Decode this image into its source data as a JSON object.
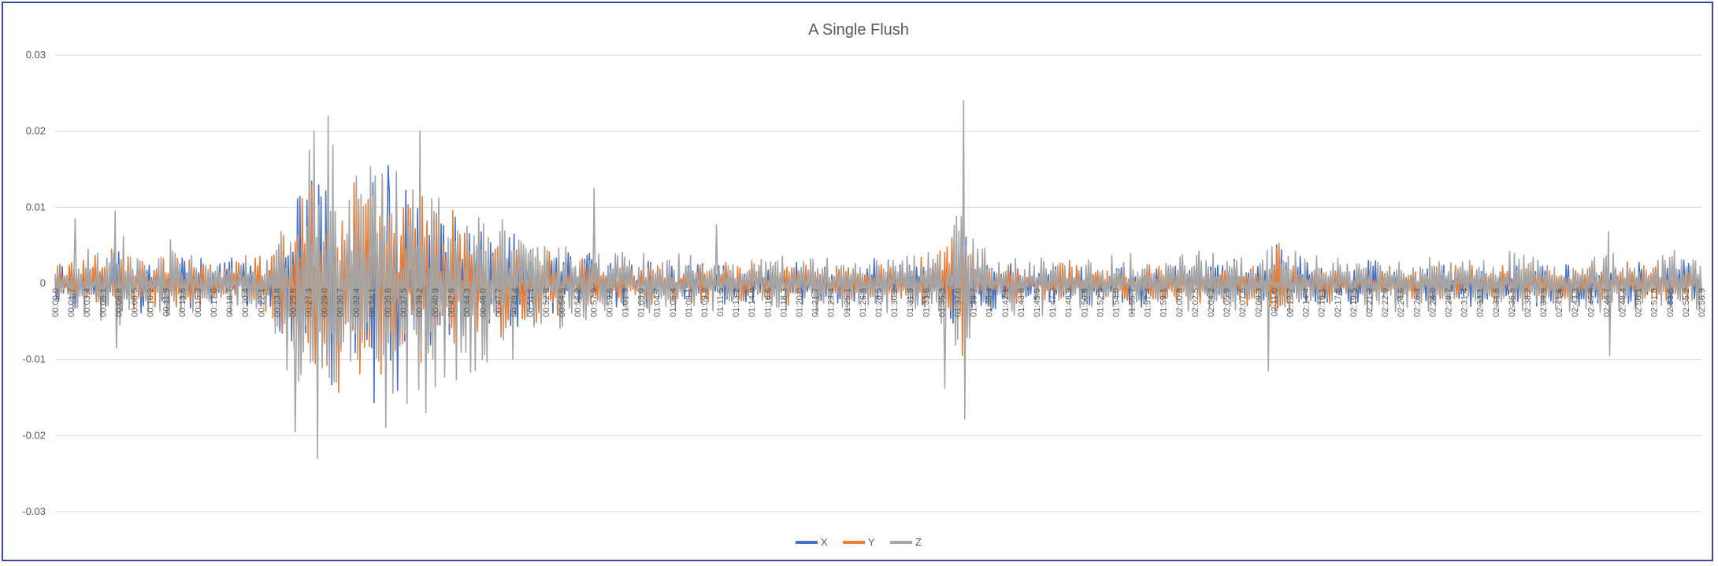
{
  "chart_data": {
    "type": "line",
    "title": "A Single Flush",
    "xlabel": "",
    "ylabel": "",
    "ylim": [
      -0.03,
      0.03
    ],
    "yticks": [
      "0.03",
      "0.02",
      "0.01",
      "0",
      "-0.01",
      "-0.02",
      "-0.03"
    ],
    "grid": true,
    "legend_position": "bottom",
    "xtick_labels": [
      "00:00.0",
      "00:01.7",
      "00:03.4",
      "00:05.1",
      "00:06.8",
      "00:08.5",
      "00:10.2",
      "00:11.9",
      "00:13.6",
      "00:15.3",
      "00:17.0",
      "00:18.7",
      "00:20.4",
      "00:22.1",
      "00:23.8",
      "00:25.6",
      "00:27.3",
      "00:29.0",
      "00:30.7",
      "00:32.4",
      "00:34.1",
      "00:35.8",
      "00:37.5",
      "00:39.2",
      "00:40.9",
      "00:42.6",
      "00:44.3",
      "00:46.0",
      "00:47.7",
      "00:49.4",
      "00:51.1",
      "00:52.8",
      "00:54.5",
      "00:56.2",
      "00:57.9",
      "00:59.6",
      "01:01.3",
      "01:03.0",
      "01:04.7",
      "01:06.4",
      "01:08.1",
      "01:09.8",
      "01:11.5",
      "01:13.2",
      "01:14.9",
      "01:16.6",
      "01:18.3",
      "01:20.0",
      "01:21.7",
      "01:23.4",
      "01:25.1",
      "01:26.8",
      "01:28.5",
      "01:30.2",
      "01:31.9",
      "01:33.6",
      "01:35.3",
      "01:37.0",
      "01:38.7",
      "01:40.4",
      "01:42.1",
      "01:43.8",
      "01:45.5",
      "01:47.2",
      "01:48.9",
      "01:50.6",
      "01:52.3",
      "01:54.0",
      "01:55.7",
      "01:57.4",
      "01:59.1",
      "02:00.8",
      "02:02.5",
      "02:04.2",
      "02:05.9",
      "02:07.6",
      "02:09.3",
      "02:11.0",
      "02:12.7",
      "02:14.4",
      "02:16.1",
      "02:17.8",
      "02:19.5",
      "02:21.2",
      "02:22.9",
      "02:24.6",
      "02:26.3",
      "02:28.0",
      "02:29.7",
      "02:31.4",
      "02:33.1",
      "02:34.8",
      "02:36.5",
      "02:38.2",
      "02:39.9",
      "02:41.6",
      "02:43.3",
      "02:45.0",
      "02:46.7",
      "02:48.4",
      "02:50.1",
      "02:51.8",
      "02:53.5",
      "02:55.2",
      "02:56.9"
    ],
    "x_range_seconds": [
      0,
      178
    ],
    "envelope_points": [
      [
        0,
        0.003
      ],
      [
        7,
        0.005
      ],
      [
        10,
        0.004
      ],
      [
        14,
        0.004
      ],
      [
        18,
        0.003
      ],
      [
        23,
        0.004
      ],
      [
        26,
        0.012
      ],
      [
        29,
        0.018
      ],
      [
        32,
        0.014
      ],
      [
        34,
        0.016
      ],
      [
        36,
        0.015
      ],
      [
        38,
        0.013
      ],
      [
        41,
        0.012
      ],
      [
        44,
        0.01
      ],
      [
        47,
        0.008
      ],
      [
        50,
        0.007
      ],
      [
        53,
        0.005
      ],
      [
        56,
        0.004
      ],
      [
        60,
        0.004
      ],
      [
        65,
        0.003
      ],
      [
        90,
        0.003
      ],
      [
        95,
        0.004
      ],
      [
        97,
        0.008
      ],
      [
        98,
        0.012
      ],
      [
        99,
        0.005
      ],
      [
        102,
        0.003
      ],
      [
        125,
        0.003
      ],
      [
        131,
        0.003
      ],
      [
        132,
        0.006
      ],
      [
        133,
        0.006
      ],
      [
        135,
        0.003
      ],
      [
        150,
        0.003
      ],
      [
        178,
        0.003
      ]
    ],
    "peaks": [
      {
        "t": 2.2,
        "series": "Z",
        "value": 0.0085
      },
      {
        "t": 6.5,
        "series": "Z",
        "value": 0.0095
      },
      {
        "t": 6.6,
        "series": "Z",
        "value": -0.0085
      },
      {
        "t": 28.0,
        "series": "Z",
        "value": 0.02
      },
      {
        "t": 28.4,
        "series": "Z",
        "value": -0.023
      },
      {
        "t": 29.5,
        "series": "Z",
        "value": 0.022
      },
      {
        "t": 26.0,
        "series": "Z",
        "value": -0.0195
      },
      {
        "t": 36.0,
        "series": "X",
        "value": 0.0155
      },
      {
        "t": 39.5,
        "series": "Z",
        "value": 0.02
      },
      {
        "t": 40.1,
        "series": "Z",
        "value": -0.017
      },
      {
        "t": 58.3,
        "series": "Z",
        "value": 0.0125
      },
      {
        "t": 71.5,
        "series": "Z",
        "value": 0.0077
      },
      {
        "t": 96.2,
        "series": "Z",
        "value": -0.0138
      },
      {
        "t": 98.2,
        "series": "Z",
        "value": 0.024
      },
      {
        "t": 98.4,
        "series": "Z",
        "value": -0.0178
      },
      {
        "t": 131.2,
        "series": "Z",
        "value": -0.0115
      },
      {
        "t": 168.0,
        "series": "Z",
        "value": 0.0068
      },
      {
        "t": 168.1,
        "series": "Z",
        "value": -0.0095
      }
    ],
    "series": [
      {
        "name": "X",
        "color": "#4472c4"
      },
      {
        "name": "Y",
        "color": "#ed7d31"
      },
      {
        "name": "Z",
        "color": "#a5a5a5"
      }
    ]
  }
}
